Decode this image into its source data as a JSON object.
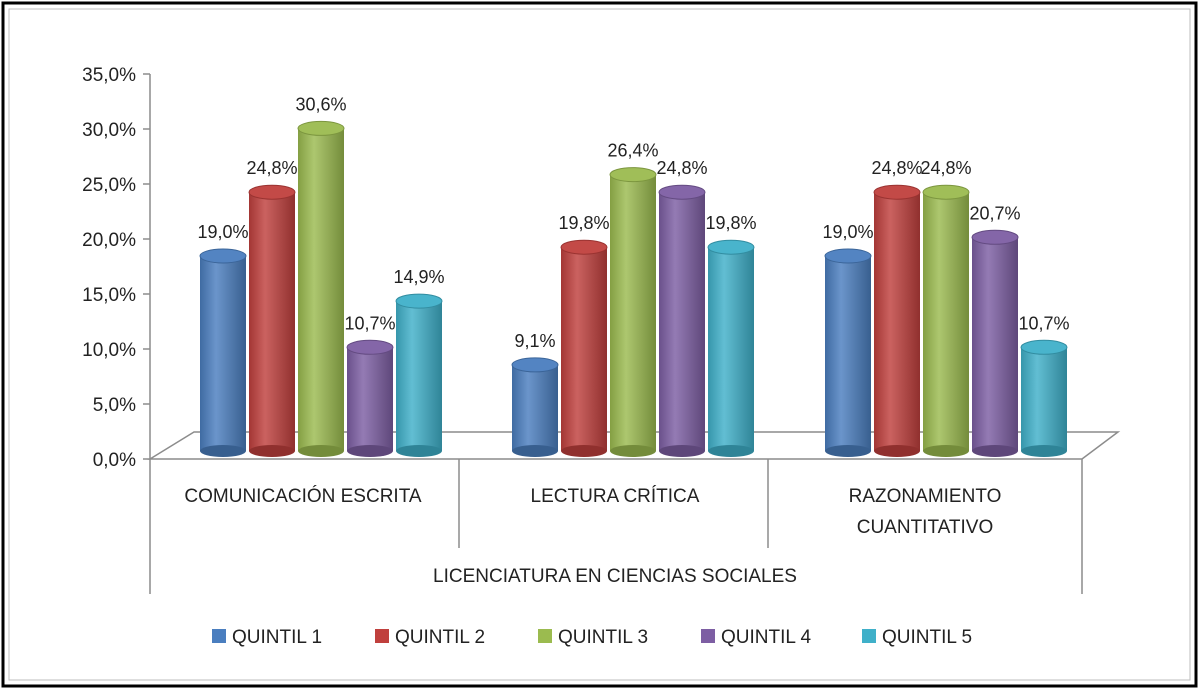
{
  "chart_data": {
    "type": "bar",
    "group_label": "LICENCIATURA EN CIENCIAS SOCIALES",
    "categories": [
      [
        "COMUNICACIÓN ESCRITA"
      ],
      [
        "LECTURA CRÍTICA"
      ],
      [
        "RAZONAMIENTO",
        "CUANTITATIVO"
      ]
    ],
    "ylim": [
      0,
      35
    ],
    "yticks": [
      "0,0%",
      "5,0%",
      "10,0%",
      "15,0%",
      "20,0%",
      "25,0%",
      "30,0%",
      "35,0%"
    ],
    "ytick_values": [
      0,
      5,
      10,
      15,
      20,
      25,
      30,
      35
    ],
    "legend_position": "bottom",
    "series": [
      {
        "name": "QUINTIL 1",
        "color": "#4a7ebf",
        "values": [
          19.0,
          9.1,
          19.0
        ],
        "labels": [
          "19,0%",
          "9,1%",
          "19,0%"
        ]
      },
      {
        "name": "QUINTIL 2",
        "color": "#c0403d",
        "values": [
          24.8,
          19.8,
          24.8
        ],
        "labels": [
          "24,8%",
          "19,8%",
          "24,8%"
        ]
      },
      {
        "name": "QUINTIL 3",
        "color": "#9bbb4f",
        "values": [
          30.6,
          26.4,
          24.8
        ],
        "labels": [
          "30,6%",
          "26,4%",
          "24,8%"
        ]
      },
      {
        "name": "QUINTIL 4",
        "color": "#7d5ea3",
        "values": [
          10.7,
          24.8,
          20.7
        ],
        "labels": [
          "10,7%",
          "24,8%",
          "20,7%"
        ]
      },
      {
        "name": "QUINTIL 5",
        "color": "#3fb0c9",
        "values": [
          14.9,
          19.8,
          10.7
        ],
        "labels": [
          "14,9%",
          "19,8%",
          "10,7%"
        ]
      }
    ]
  }
}
